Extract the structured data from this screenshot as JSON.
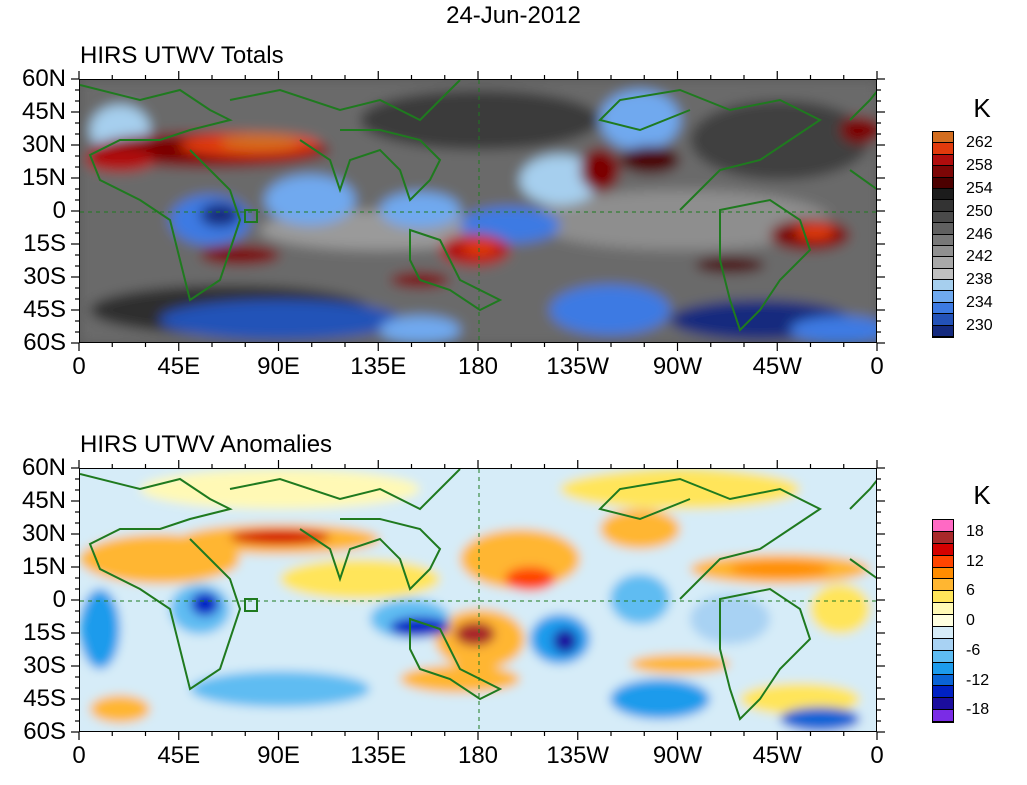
{
  "title": "24-Jun-2012",
  "lat_labels": [
    "60N",
    "45N",
    "30N",
    "15N",
    "0",
    "15S",
    "30S",
    "45S",
    "60S"
  ],
  "lon_labels": [
    "0",
    "45E",
    "90E",
    "135E",
    "180",
    "135W",
    "90W",
    "45W",
    "0"
  ],
  "colors": {
    "land": "#1f7a1f",
    "frame": "#000000"
  },
  "panels": [
    {
      "id": "totals",
      "title": "HIRS UTWV Totals",
      "units": "K",
      "colorbar": {
        "colors": [
          "#d36d1f",
          "#e13a0c",
          "#b00d0d",
          "#7c0606",
          "#4c0000",
          "#1c1c1c",
          "#333333",
          "#4a4a4a",
          "#606060",
          "#787878",
          "#909090",
          "#a8a8a8",
          "#c0c0c0",
          "#a6cfee",
          "#6fa9ef",
          "#3c7ae3",
          "#2352b8",
          "#142a7e"
        ],
        "labels": [
          "262",
          "258",
          "254",
          "250",
          "246",
          "242",
          "238",
          "234",
          "230"
        ]
      }
    },
    {
      "id": "anomalies",
      "title": "HIRS UTWV Anomalies",
      "units": "K",
      "colorbar": {
        "colors": [
          "#ff69c4",
          "#a8282a",
          "#d40000",
          "#ff4500",
          "#ff8c00",
          "#ffb631",
          "#ffe55a",
          "#fff9b5",
          "#ffffe0",
          "#d6ecf8",
          "#a8d2f3",
          "#5ebcf2",
          "#1c9bec",
          "#0a64d6",
          "#0021c4",
          "#1b0d9e",
          "#7a2ce6"
        ],
        "labels": [
          "18",
          "12",
          "6",
          "0",
          "-6",
          "-12",
          "-18"
        ]
      }
    }
  ]
}
